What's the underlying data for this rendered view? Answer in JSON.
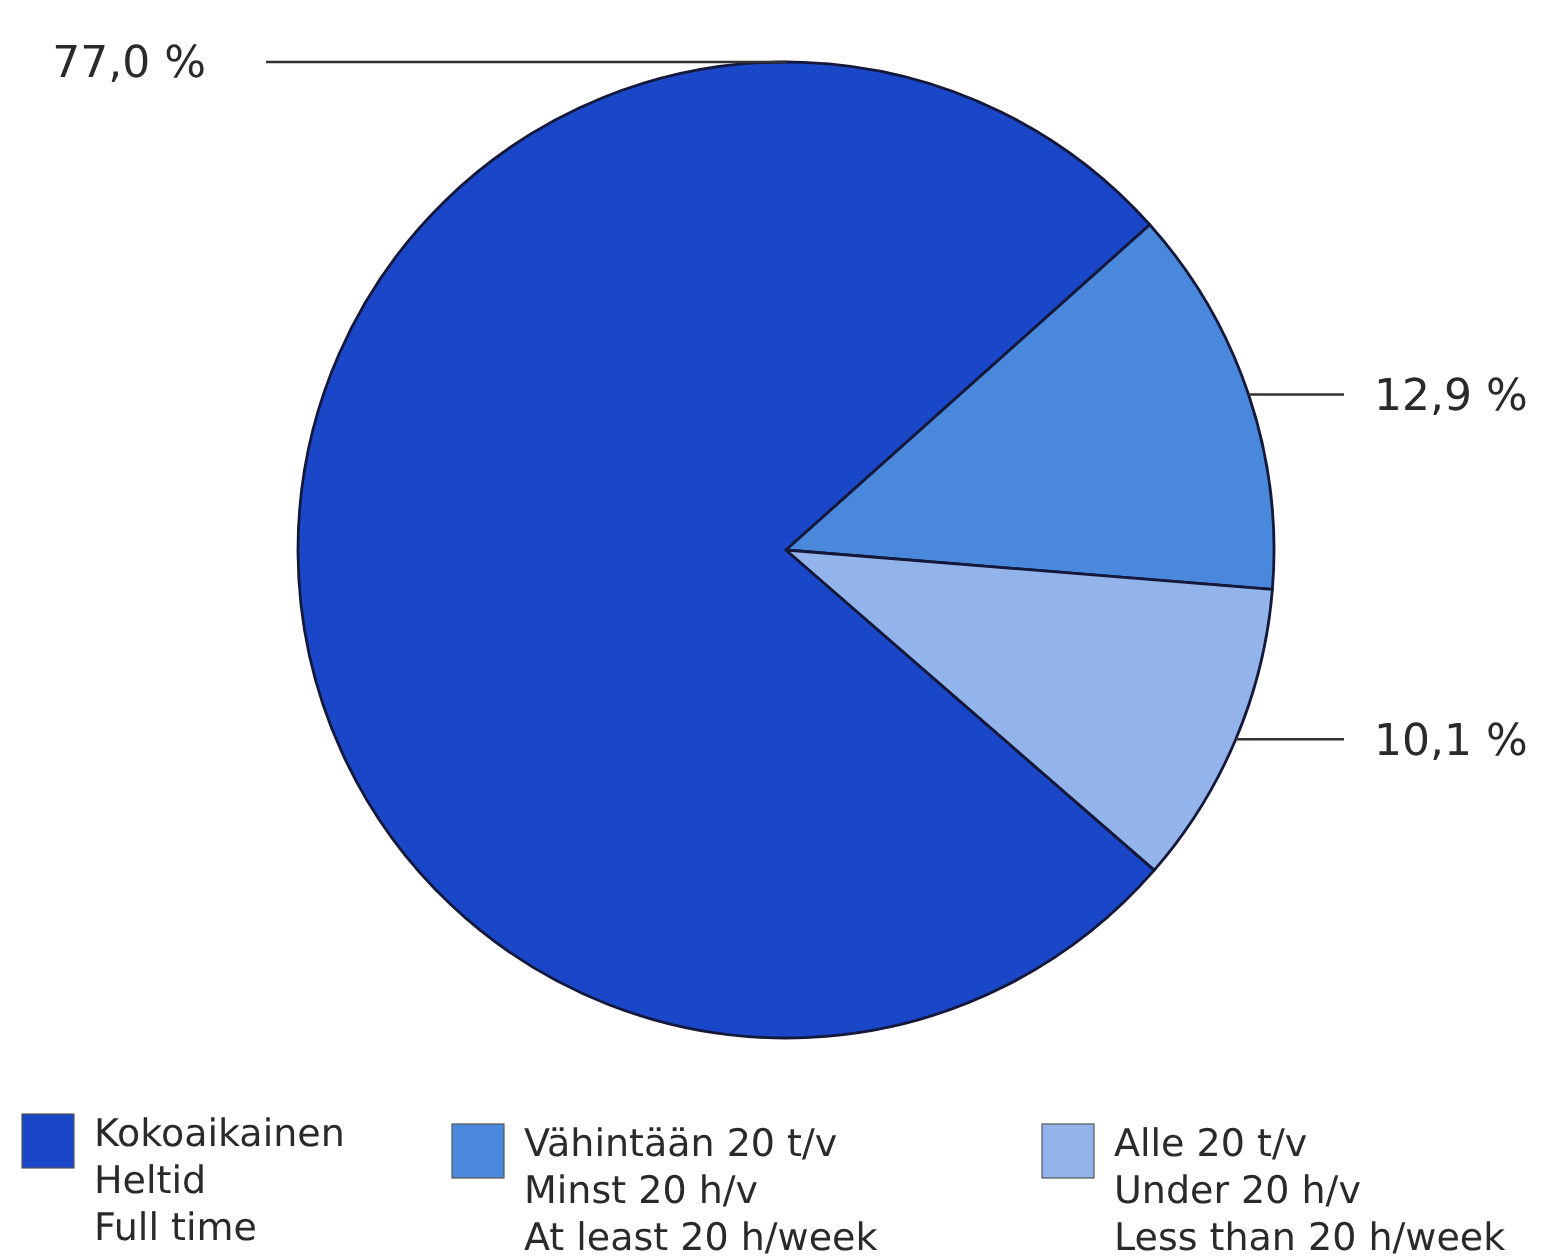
{
  "chart_data": {
    "type": "pie",
    "categories": [
      "Kokoaikainen\nHeltid\nFull time",
      "Vähintään 20 t/v\nMinst 20 h/v\nAt least 20 h/week",
      "Alle 20 t/v\nUnder 20 h/v\nLess than 20 h/week"
    ],
    "values": [
      77.0,
      12.9,
      10.1
    ],
    "colors": [
      "#1a46c8",
      "#4a88dc",
      "#93b4ea"
    ],
    "value_labels": [
      "77,0 %",
      "12,9 %",
      "10,1 %"
    ],
    "legend": "bottom"
  }
}
